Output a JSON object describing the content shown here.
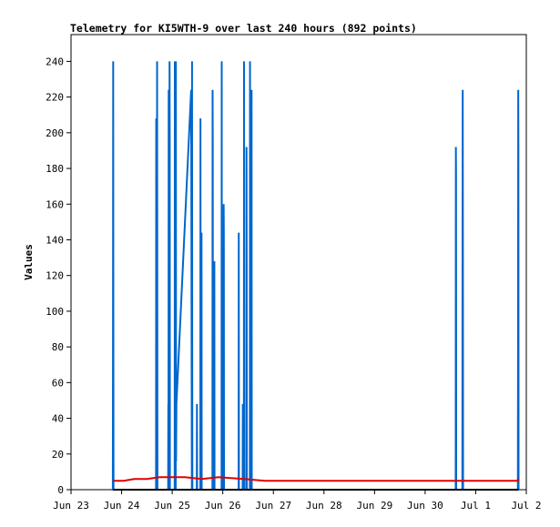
{
  "chart_data": {
    "type": "line",
    "title": "Telemetry for KI5WTH-9 over last 240 hours (892 points)",
    "xlabel": "",
    "ylabel": "Values",
    "ylim": [
      0,
      255
    ],
    "xlim": [
      "2025-06-23 00:00",
      "2025-07-02 00:00"
    ],
    "x_ticks": [
      "Jun 23",
      "Jun 24",
      "Jun 25",
      "Jun 26",
      "Jun 27",
      "Jun 28",
      "Jun 29",
      "Jun 30",
      "Jul 1",
      "Jul 2"
    ],
    "y_ticks": [
      0,
      20,
      40,
      60,
      80,
      100,
      120,
      140,
      160,
      180,
      200,
      220,
      240
    ],
    "grid": false,
    "colors": {
      "blue": "#0066cc",
      "red": "#e00000",
      "black": "#000000"
    },
    "series": [
      {
        "color": "#0066cc",
        "points": [
          [
            "2025-06-23 19:50",
            0
          ],
          [
            "2025-06-23 19:55",
            80
          ],
          [
            "2025-06-23 20:00",
            240
          ],
          [
            "2025-06-23 20:05",
            96
          ],
          [
            "2025-06-23 20:10",
            0
          ],
          [
            "2025-06-24 16:20",
            0
          ],
          [
            "2025-06-24 16:25",
            208
          ],
          [
            "2025-06-24 16:30",
            0
          ],
          [
            "2025-06-24 16:35",
            208
          ],
          [
            "2025-06-24 16:40",
            192
          ],
          [
            "2025-06-24 16:45",
            0
          ],
          [
            "2025-06-24 16:50",
            240
          ],
          [
            "2025-06-24 16:55",
            144
          ],
          [
            "2025-06-24 17:00",
            0
          ],
          [
            "2025-06-24 22:05",
            0
          ],
          [
            "2025-06-24 22:10",
            48
          ],
          [
            "2025-06-24 22:15",
            0
          ],
          [
            "2025-06-24 22:20",
            224
          ],
          [
            "2025-06-24 22:25",
            0
          ],
          [
            "2025-06-24 22:40",
            0
          ],
          [
            "2025-06-24 22:45",
            240
          ],
          [
            "2025-06-24 22:50",
            192
          ],
          [
            "2025-06-24 22:55",
            0
          ],
          [
            "2025-06-25 01:10",
            0
          ],
          [
            "2025-06-25 01:15",
            240
          ],
          [
            "2025-06-25 01:20",
            176
          ],
          [
            "2025-06-25 01:25",
            0
          ],
          [
            "2025-06-25 01:40",
            0
          ],
          [
            "2025-06-25 01:45",
            240
          ],
          [
            "2025-06-25 01:50",
            16
          ],
          [
            "2025-06-25 02:00",
            48
          ],
          [
            "2025-06-25 09:00",
            224
          ],
          [
            "2025-06-25 09:20",
            0
          ],
          [
            "2025-06-25 09:25",
            240
          ],
          [
            "2025-06-25 09:30",
            80
          ],
          [
            "2025-06-25 09:35",
            0
          ],
          [
            "2025-06-25 11:40",
            0
          ],
          [
            "2025-06-25 11:45",
            48
          ],
          [
            "2025-06-25 11:50",
            0
          ],
          [
            "2025-06-25 13:20",
            0
          ],
          [
            "2025-06-25 13:25",
            208
          ],
          [
            "2025-06-25 13:30",
            0
          ],
          [
            "2025-06-25 13:50",
            0
          ],
          [
            "2025-06-25 13:55",
            144
          ],
          [
            "2025-06-25 14:00",
            0
          ],
          [
            "2025-06-25 19:05",
            0
          ],
          [
            "2025-06-25 19:10",
            224
          ],
          [
            "2025-06-25 19:15",
            192
          ],
          [
            "2025-06-25 19:20",
            0
          ],
          [
            "2025-06-25 19:55",
            0
          ],
          [
            "2025-06-25 20:00",
            128
          ],
          [
            "2025-06-25 20:05",
            0
          ],
          [
            "2025-06-25 23:25",
            0
          ],
          [
            "2025-06-25 23:30",
            240
          ],
          [
            "2025-06-25 23:35",
            0
          ],
          [
            "2025-06-26 00:20",
            0
          ],
          [
            "2025-06-26 00:25",
            160
          ],
          [
            "2025-06-26 00:30",
            144
          ],
          [
            "2025-06-26 00:35",
            0
          ],
          [
            "2025-06-26 07:30",
            0
          ],
          [
            "2025-06-26 07:35",
            144
          ],
          [
            "2025-06-26 07:40",
            0
          ],
          [
            "2025-06-26 09:25",
            0
          ],
          [
            "2025-06-26 09:30",
            48
          ],
          [
            "2025-06-26 09:35",
            0
          ],
          [
            "2025-06-26 10:00",
            0
          ],
          [
            "2025-06-26 10:05",
            240
          ],
          [
            "2025-06-26 10:10",
            0
          ],
          [
            "2025-06-26 11:10",
            0
          ],
          [
            "2025-06-26 11:15",
            192
          ],
          [
            "2025-06-26 11:20",
            128
          ],
          [
            "2025-06-26 11:25",
            0
          ],
          [
            "2025-06-26 12:50",
            0
          ],
          [
            "2025-06-26 12:55",
            240
          ],
          [
            "2025-06-26 13:00",
            0
          ],
          [
            "2025-06-26 13:35",
            0
          ],
          [
            "2025-06-26 13:40",
            224
          ],
          [
            "2025-06-26 13:45",
            0
          ],
          [
            "2025-06-30 14:30",
            0
          ],
          [
            "2025-06-30 14:35",
            192
          ],
          [
            "2025-06-30 14:40",
            176
          ],
          [
            "2025-06-30 14:45",
            0
          ],
          [
            "2025-06-30 17:40",
            0
          ],
          [
            "2025-06-30 17:45",
            144
          ],
          [
            "2025-06-30 17:50",
            224
          ],
          [
            "2025-06-30 17:55",
            144
          ],
          [
            "2025-06-30 18:00",
            0
          ],
          [
            "2025-07-01 20:00",
            0
          ],
          [
            "2025-07-01 20:05",
            80
          ],
          [
            "2025-07-01 20:10",
            224
          ],
          [
            "2025-07-01 20:15",
            192
          ],
          [
            "2025-07-01 20:20",
            0
          ]
        ]
      },
      {
        "color": "#e00000",
        "points": [
          [
            "2025-06-23 19:50",
            5
          ],
          [
            "2025-06-24 01:00",
            5
          ],
          [
            "2025-06-24 06:00",
            6
          ],
          [
            "2025-06-24 12:00",
            6
          ],
          [
            "2025-06-24 18:00",
            7
          ],
          [
            "2025-06-25 06:00",
            7
          ],
          [
            "2025-06-25 14:00",
            6
          ],
          [
            "2025-06-25 22:00",
            7
          ],
          [
            "2025-06-26 10:00",
            6
          ],
          [
            "2025-06-26 20:00",
            5
          ],
          [
            "2025-07-01 20:00",
            5
          ],
          [
            "2025-07-01 20:05",
            6
          ],
          [
            "2025-07-01 20:20",
            6
          ]
        ]
      },
      {
        "color": "#000000",
        "points": [
          [
            "2025-06-23 19:50",
            0
          ],
          [
            "2025-07-01 20:20",
            0
          ]
        ]
      }
    ]
  }
}
